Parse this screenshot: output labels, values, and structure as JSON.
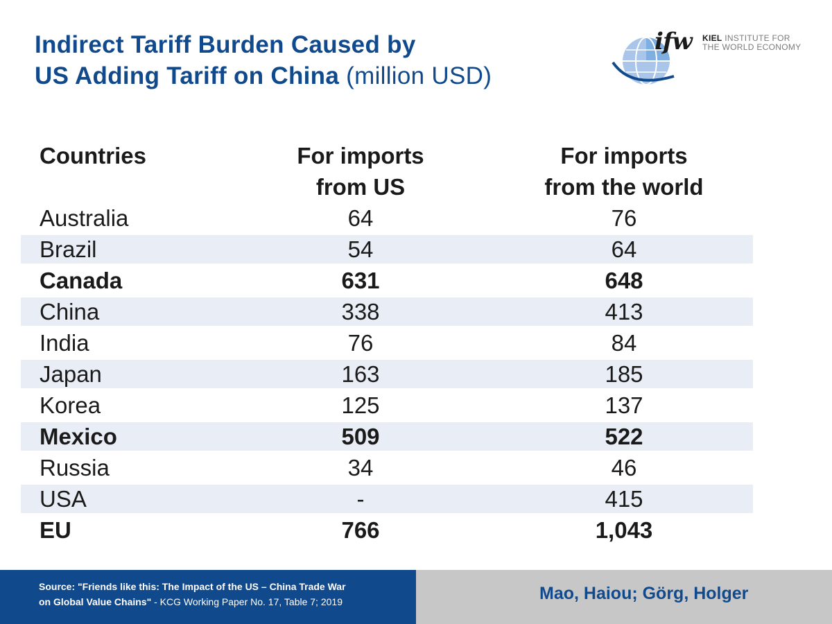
{
  "title": {
    "line1": "Indirect Tariff Burden Caused by",
    "line2": "US Adding Tariff on China",
    "unit": "(million USD)"
  },
  "logo": {
    "mark": "ifw",
    "line1_bold": "KIEL",
    "line1_rest": "INSTITUTE FOR",
    "line2": "THE WORLD ECONOMY",
    "icon": "globe-icon"
  },
  "table": {
    "headers": {
      "country": "Countries",
      "us_line1": "For imports",
      "us_line2": "from US",
      "world_line1": "For imports",
      "world_line2": "from the world"
    },
    "rows": [
      {
        "country": "Australia",
        "us": "64",
        "world": "76",
        "bold": false
      },
      {
        "country": "Brazil",
        "us": "54",
        "world": "64",
        "bold": false
      },
      {
        "country": "Canada",
        "us": "631",
        "world": "648",
        "bold": true
      },
      {
        "country": "China",
        "us": "338",
        "world": "413",
        "bold": false
      },
      {
        "country": "India",
        "us": "76",
        "world": "84",
        "bold": false
      },
      {
        "country": "Japan",
        "us": "163",
        "world": "185",
        "bold": false
      },
      {
        "country": "Korea",
        "us": "125",
        "world": "137",
        "bold": false
      },
      {
        "country": "Mexico",
        "us": "509",
        "world": "522",
        "bold": true
      },
      {
        "country": "Russia",
        "us": "34",
        "world": "46",
        "bold": false
      },
      {
        "country": "USA",
        "us": "-",
        "world": "415",
        "bold": false
      },
      {
        "country": "EU",
        "us": "766",
        "world": "1,043",
        "bold": true
      }
    ]
  },
  "footer": {
    "source_bold_1": "Source: \"Friends like this: The Impact of the US – China Trade War",
    "source_bold_2": "on Global Value Chains\"",
    "source_rest": " - KCG Working Paper No. 17, Table 7; 2019",
    "authors": "Mao, Haiou; Görg, Holger"
  },
  "colors": {
    "brand_blue": "#114a8c",
    "row_shade": "#e9eef6",
    "footer_gray": "#c7c7c7"
  }
}
